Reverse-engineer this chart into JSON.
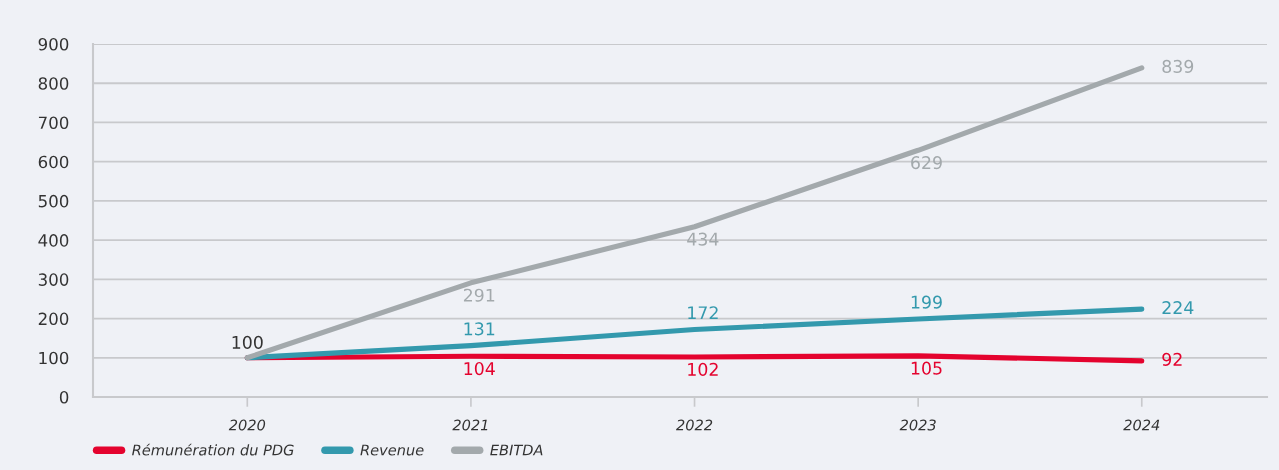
{
  "chart_data": {
    "type": "line",
    "categories": [
      "2020",
      "2021",
      "2022",
      "2023",
      "2024"
    ],
    "series": [
      {
        "name": "Rémunération du PDG",
        "color": "#e4032e",
        "values": [
          100,
          104,
          102,
          105,
          92
        ],
        "value_labels": [
          null,
          "104",
          "102",
          "105",
          "92"
        ]
      },
      {
        "name": "Revenue",
        "color": "#3399ad",
        "values": [
          100,
          131,
          172,
          199,
          224
        ],
        "value_labels": [
          null,
          "131",
          "172",
          "199",
          "224"
        ]
      },
      {
        "name": "EBITDA",
        "color": "#a3a9ac",
        "values": [
          100,
          291,
          434,
          629,
          839
        ],
        "value_labels": [
          null,
          "291",
          "434",
          "629",
          "839"
        ]
      }
    ],
    "annotations": [
      {
        "text": "100",
        "x": "2020",
        "y": 100
      }
    ],
    "ylim": [
      0,
      900
    ],
    "yticks": [
      0,
      100,
      200,
      300,
      400,
      500,
      600,
      700,
      800,
      900
    ],
    "grid": "y",
    "legend": "bottom",
    "marker": "none",
    "line_style": "solid"
  }
}
